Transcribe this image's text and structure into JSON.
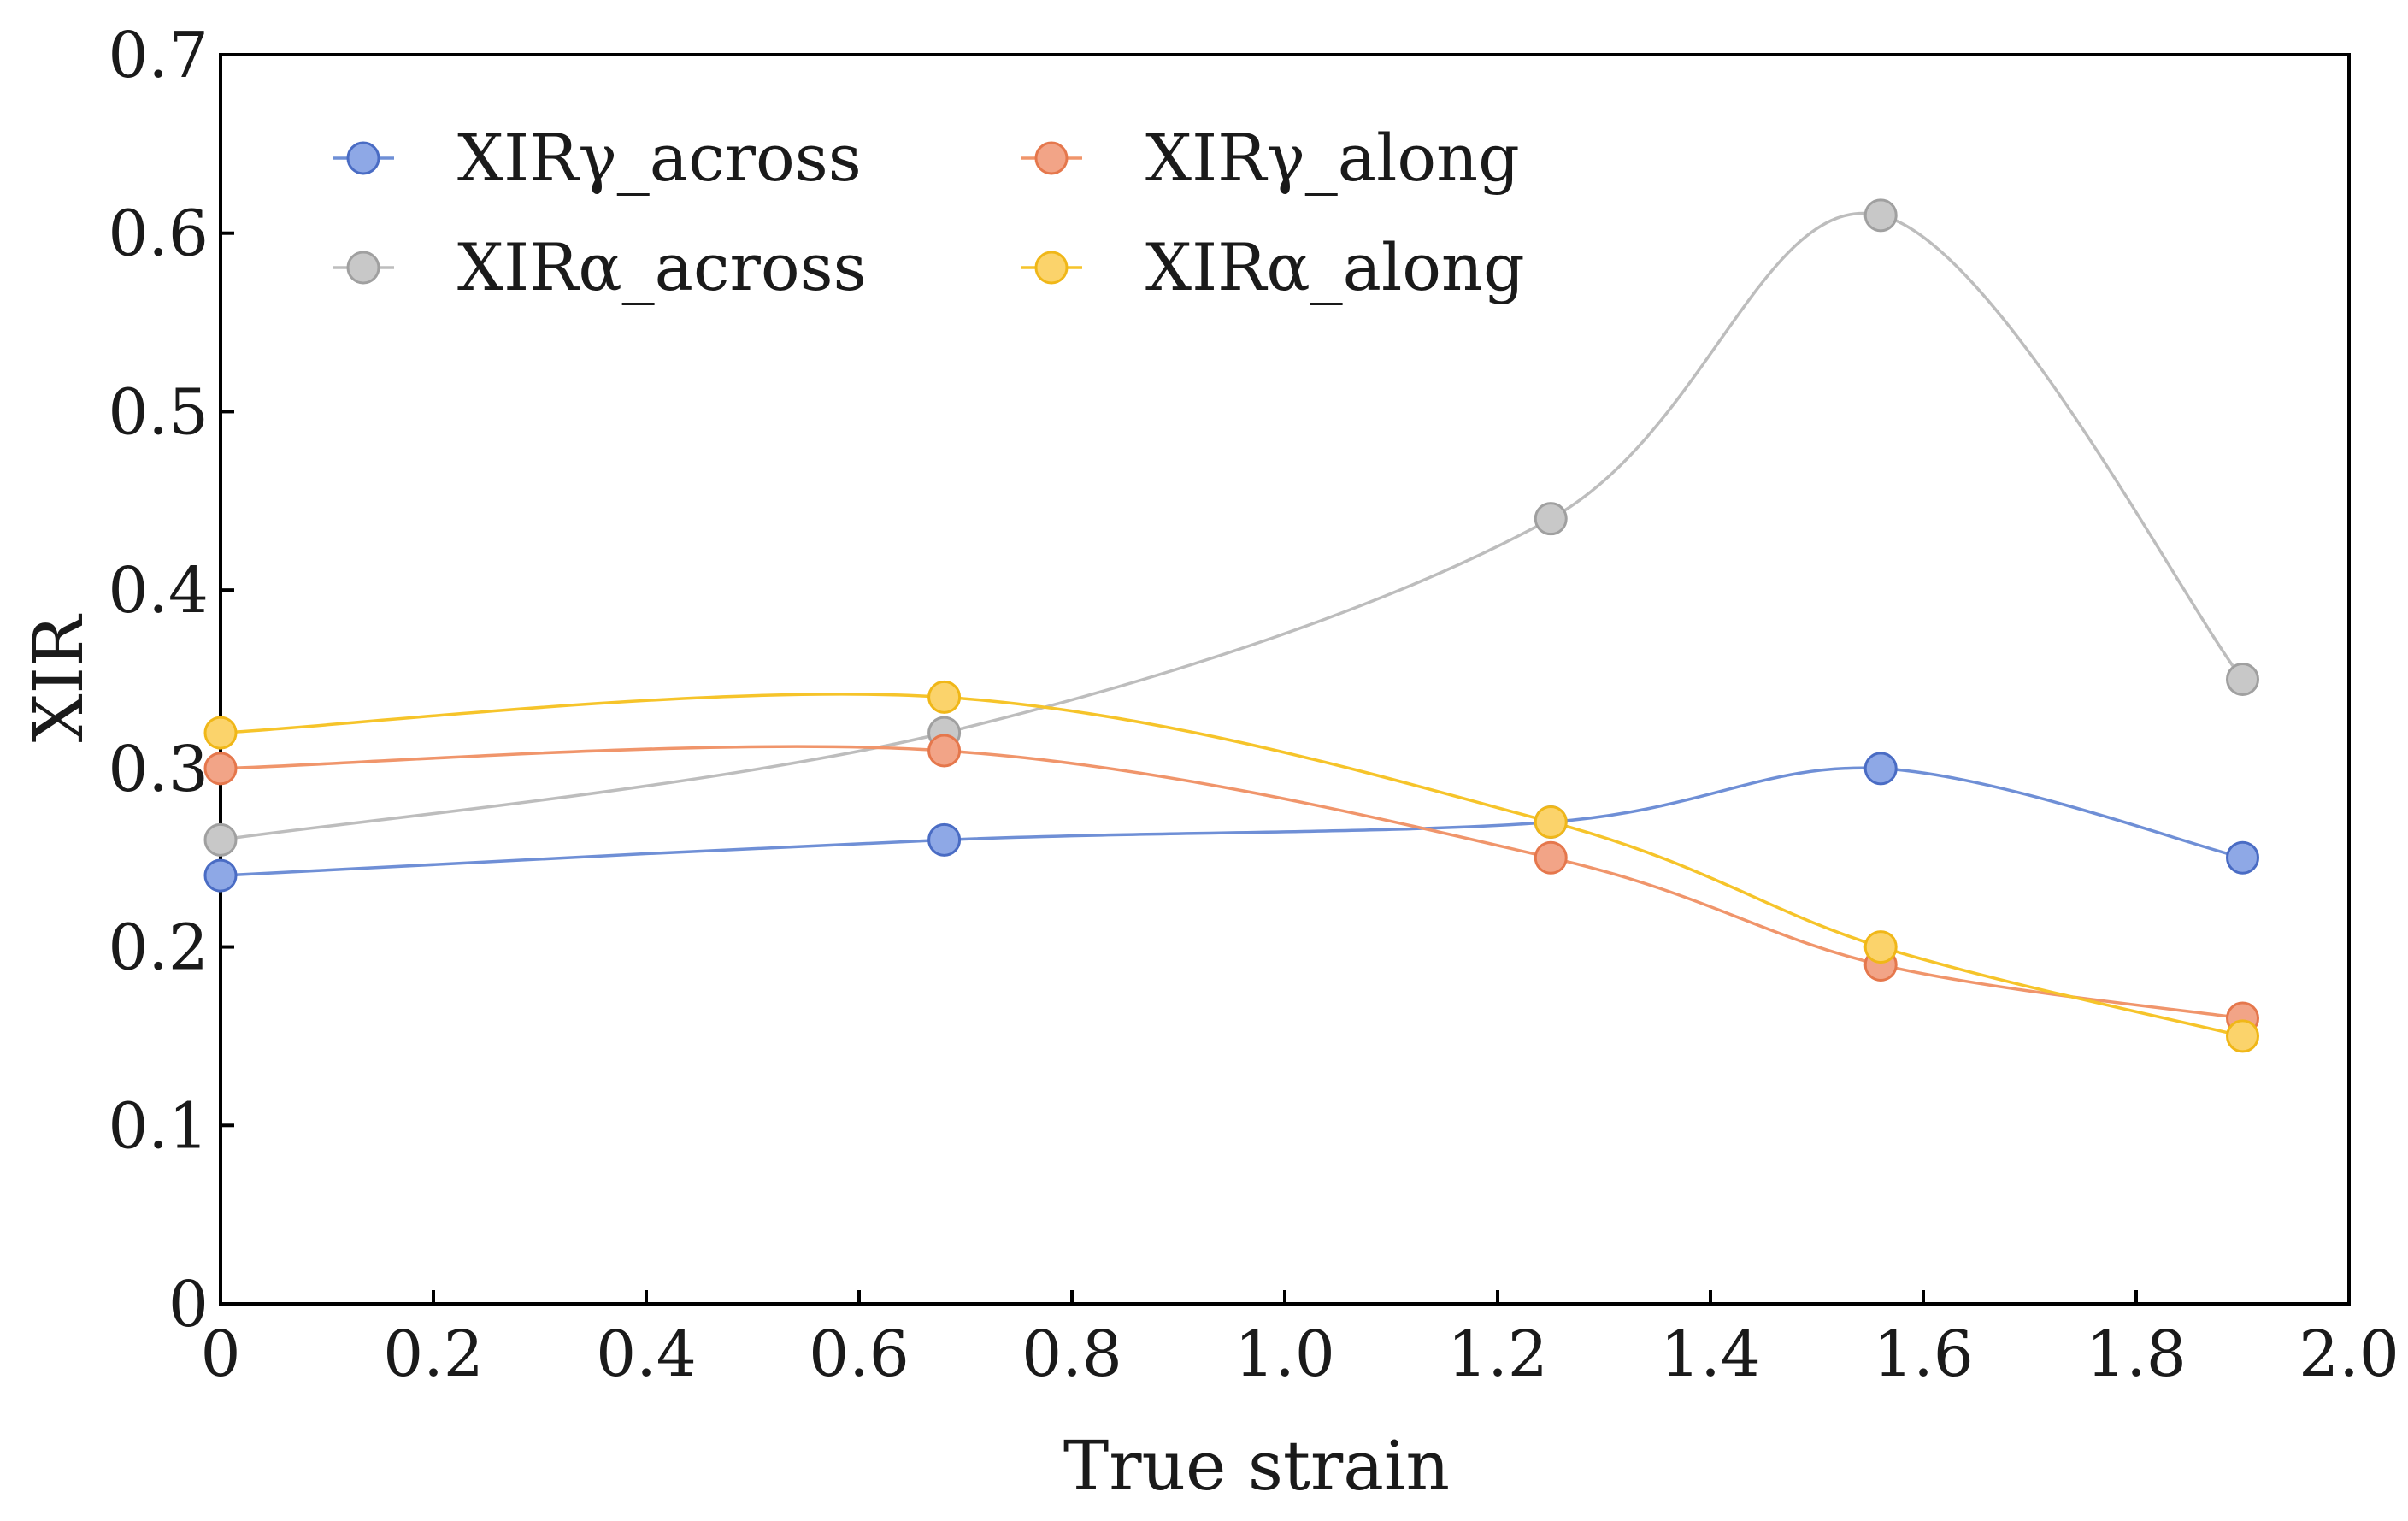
{
  "chart_data": {
    "type": "line",
    "title": "",
    "xlabel": "True strain",
    "ylabel": "XIR",
    "xlim": [
      0,
      2.0
    ],
    "ylim": [
      0,
      0.7
    ],
    "x_ticks": [
      0,
      0.2,
      0.4,
      0.6,
      0.8,
      1.0,
      1.2,
      1.4,
      1.6,
      1.8,
      2.0
    ],
    "x_tick_labels": [
      "0",
      "0.2",
      "0.4",
      "0.6",
      "0.8",
      "1.0",
      "1.2",
      "1.4",
      "1.6",
      "1.8",
      "2.0"
    ],
    "y_ticks": [
      0,
      0.1,
      0.2,
      0.3,
      0.4,
      0.5,
      0.6,
      0.7
    ],
    "y_tick_labels": [
      "0",
      "0.1",
      "0.2",
      "0.3",
      "0.4",
      "0.5",
      "0.6",
      "0.7"
    ],
    "grid": false,
    "smooth": true,
    "legend_position": "top-left",
    "x": [
      0,
      0.68,
      1.25,
      1.56,
      1.9
    ],
    "series": [
      {
        "name": "XIRγ_across",
        "values": [
          0.24,
          0.26,
          0.27,
          0.3,
          0.25
        ],
        "line_color": "#6f8fd6",
        "fill_color": "#8ea8e6",
        "edge_color": "#4a6cc4"
      },
      {
        "name": "XIRγ_along",
        "values": [
          0.3,
          0.31,
          0.25,
          0.19,
          0.16
        ],
        "line_color": "#f0956b",
        "fill_color": "#f2a487",
        "edge_color": "#e5774c"
      },
      {
        "name": "XIRα_across",
        "values": [
          0.26,
          0.32,
          0.44,
          0.61,
          0.35
        ],
        "line_color": "#bdbdbd",
        "fill_color": "#c8c8c8",
        "edge_color": "#a0a0a0"
      },
      {
        "name": "XIRα_along",
        "values": [
          0.32,
          0.34,
          0.27,
          0.2,
          0.15
        ],
        "line_color": "#f6c42a",
        "fill_color": "#fbd36b",
        "edge_color": "#f0b718"
      }
    ]
  }
}
